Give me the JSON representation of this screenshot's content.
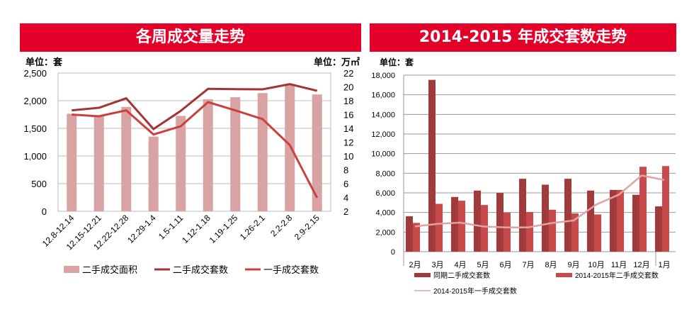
{
  "chart_data": [
    {
      "type": "bar+line",
      "title": "各周成交量走势",
      "left_unit": "单位：套",
      "right_unit": "单位：万㎡",
      "left_ylim": [
        0,
        2500
      ],
      "left_ticks": [
        "0",
        "500",
        "1,000",
        "1,500",
        "2,000",
        "2,500"
      ],
      "right_ylim": [
        2,
        22
      ],
      "right_ticks": [
        "2",
        "4",
        "6",
        "8",
        "10",
        "12",
        "14",
        "16",
        "18",
        "20",
        "22"
      ],
      "categories": [
        "12.8-12.14",
        "12.15-12.21",
        "12.22-12.28",
        "12.29-1.4",
        "1.5-1.11",
        "1.12-1.18",
        "1.19-1.25",
        "1.26-2.1",
        "2.2-2.8",
        "2.9-2.15"
      ],
      "grid": true,
      "legend": "bottom",
      "series": [
        {
          "name": "二手成交面积",
          "kind": "bar",
          "axis": "right",
          "color": "#d9a3a3",
          "values": [
            16.1,
            15.8,
            17.1,
            12.8,
            15.8,
            18.2,
            18.5,
            19.1,
            20.4,
            18.9
          ]
        },
        {
          "name": "二手成交套数",
          "kind": "line",
          "axis": "left",
          "color": "#a33336",
          "values": [
            1825,
            1872,
            2043,
            1487,
            1816,
            2214,
            2209,
            2205,
            2299,
            2179
          ]
        },
        {
          "name": "一手成交套数",
          "kind": "line",
          "axis": "left",
          "color": "#c9403f",
          "values": [
            1748,
            1718,
            1825,
            1389,
            1538,
            1974,
            1825,
            1667,
            1197,
            244
          ]
        }
      ]
    },
    {
      "type": "bar+line",
      "title": "2014-2015 年成交套数走势",
      "left_unit": "单位：套",
      "ylim": [
        0,
        18000
      ],
      "ticks": [
        "0",
        "2,000",
        "4,000",
        "6,000",
        "8,000",
        "10,000",
        "12,000",
        "14,000",
        "16,000",
        "18,000"
      ],
      "categories": [
        "2月",
        "3月",
        "4月",
        "5月",
        "6月",
        "7月",
        "8月",
        "9月",
        "10月",
        "11月",
        "12月",
        "1月"
      ],
      "grid": true,
      "legend": "bottom",
      "series": [
        {
          "name": "同期二手成交套数",
          "kind": "bar",
          "color": "#a23a3b",
          "values": [
            3610,
            17520,
            5580,
            6230,
            5990,
            7435,
            6830,
            7435,
            6230,
            6300,
            5800,
            4620
          ]
        },
        {
          "name": "2014-2015年二手成交套数",
          "kind": "bar",
          "color": "#c94a4a",
          "values": [
            2935,
            4880,
            5200,
            4760,
            3990,
            4040,
            4280,
            3900,
            3800,
            6300,
            8660,
            8730
          ]
        },
        {
          "name": "2014-2015年一手成交套数",
          "kind": "line",
          "color": "#e0a3a3",
          "values": [
            2575,
            2840,
            2960,
            2575,
            2480,
            2480,
            2910,
            3180,
            4810,
            5820,
            7770,
            7310
          ]
        }
      ]
    }
  ]
}
